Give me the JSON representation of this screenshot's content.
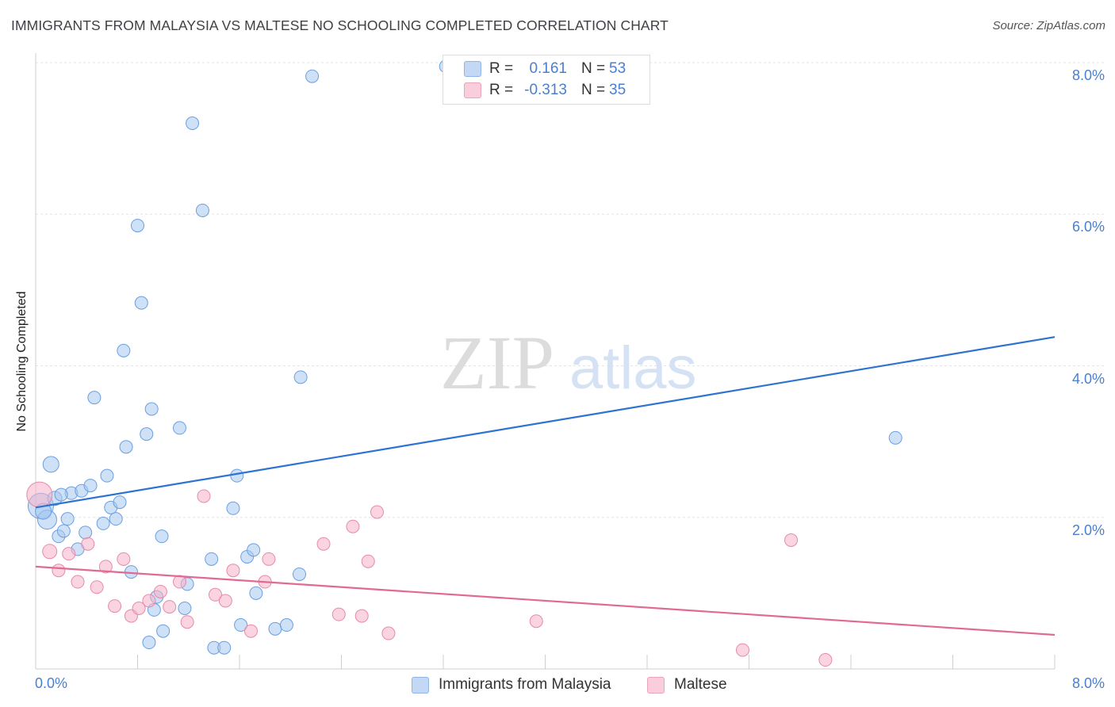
{
  "header": {
    "title": "IMMIGRANTS FROM MALAYSIA VS MALTESE NO SCHOOLING COMPLETED CORRELATION CHART",
    "source": "Source: ZipAtlas.com"
  },
  "watermark": {
    "zip": "ZIP",
    "atlas": "atlas"
  },
  "legend": {
    "rows": [
      {
        "r_label": "R =",
        "r_value": "0.161",
        "n_label": "N =",
        "n_value": "53",
        "color": "#a8c8f0"
      },
      {
        "r_label": "R =",
        "r_value": "-0.313",
        "n_label": "N =",
        "n_value": "35",
        "color": "#f5b3c8"
      }
    ]
  },
  "bottom_legend": [
    {
      "label": "Immigrants from Malaysia",
      "color": "#a8c8f0"
    },
    {
      "label": "Maltese",
      "color": "#f5b3c8"
    }
  ],
  "chart_data": {
    "type": "scatter",
    "ylabel": "No Schooling Completed",
    "xlim": [
      0,
      8
    ],
    "ylim": [
      0,
      8
    ],
    "x_ticks": [
      "0.0%",
      "8.0%"
    ],
    "y_ticks": [
      {
        "value": 2,
        "label": "2.0%"
      },
      {
        "value": 4,
        "label": "4.0%"
      },
      {
        "value": 6,
        "label": "6.0%"
      },
      {
        "value": 8,
        "label": "8.0%"
      }
    ],
    "grid": true,
    "series": [
      {
        "name": "Immigrants from Malaysia",
        "color": "#a8c8f0",
        "stroke": "#6a9fe0",
        "trend": {
          "x": [
            0,
            8
          ],
          "y": [
            2.13,
            4.38
          ],
          "color": "#2e72d2"
        },
        "points": [
          [
            0.04,
            2.15,
            16
          ],
          [
            0.09,
            1.97,
            12
          ],
          [
            0.12,
            2.7,
            10
          ],
          [
            0.15,
            2.25,
            9
          ],
          [
            0.18,
            1.75,
            8
          ],
          [
            0.22,
            1.82,
            8
          ],
          [
            0.25,
            1.98,
            8
          ],
          [
            0.28,
            2.32,
            8
          ],
          [
            0.33,
            1.58,
            8
          ],
          [
            0.36,
            2.35,
            8
          ],
          [
            0.39,
            1.8,
            8
          ],
          [
            0.43,
            2.42,
            8
          ],
          [
            0.46,
            3.58,
            8
          ],
          [
            0.53,
            1.92,
            8
          ],
          [
            0.56,
            2.55,
            8
          ],
          [
            0.59,
            2.13,
            8
          ],
          [
            0.63,
            1.98,
            8
          ],
          [
            0.66,
            2.2,
            8
          ],
          [
            0.69,
            4.2,
            8
          ],
          [
            0.71,
            2.93,
            8
          ],
          [
            0.75,
            1.28,
            8
          ],
          [
            0.8,
            5.85,
            8
          ],
          [
            0.83,
            4.83,
            8
          ],
          [
            0.87,
            3.1,
            8
          ],
          [
            0.89,
            0.35,
            8
          ],
          [
            0.91,
            3.43,
            8
          ],
          [
            0.93,
            0.78,
            8
          ],
          [
            0.95,
            0.95,
            8
          ],
          [
            0.99,
            1.75,
            8
          ],
          [
            1.0,
            0.5,
            8
          ],
          [
            1.13,
            3.18,
            8
          ],
          [
            1.17,
            0.8,
            8
          ],
          [
            1.19,
            1.12,
            8
          ],
          [
            1.23,
            7.2,
            8
          ],
          [
            1.31,
            6.05,
            8
          ],
          [
            1.38,
            1.45,
            8
          ],
          [
            1.4,
            0.28,
            8
          ],
          [
            1.48,
            0.28,
            8
          ],
          [
            1.55,
            2.12,
            8
          ],
          [
            1.58,
            2.55,
            8
          ],
          [
            1.61,
            0.58,
            8
          ],
          [
            1.66,
            1.48,
            8
          ],
          [
            1.71,
            1.57,
            8
          ],
          [
            1.73,
            1.0,
            8
          ],
          [
            1.88,
            0.53,
            8
          ],
          [
            1.97,
            0.58,
            8
          ],
          [
            2.07,
            1.25,
            8
          ],
          [
            2.08,
            3.85,
            8
          ],
          [
            2.17,
            7.82,
            8
          ],
          [
            3.22,
            7.95,
            8
          ],
          [
            6.75,
            3.05,
            8
          ],
          [
            0.06,
            2.08,
            10
          ],
          [
            0.2,
            2.3,
            8
          ]
        ]
      },
      {
        "name": "Maltese",
        "color": "#f5b3c8",
        "stroke": "#e889aa",
        "trend": {
          "x": [
            0,
            8
          ],
          "y": [
            1.35,
            0.45
          ],
          "color": "#e06a96"
        },
        "points": [
          [
            0.03,
            2.3,
            16
          ],
          [
            0.11,
            1.55,
            9
          ],
          [
            0.18,
            1.3,
            8
          ],
          [
            0.26,
            1.52,
            8
          ],
          [
            0.33,
            1.15,
            8
          ],
          [
            0.41,
            1.65,
            8
          ],
          [
            0.48,
            1.08,
            8
          ],
          [
            0.55,
            1.35,
            8
          ],
          [
            0.62,
            0.83,
            8
          ],
          [
            0.69,
            1.45,
            8
          ],
          [
            0.75,
            0.7,
            8
          ],
          [
            0.81,
            0.8,
            8
          ],
          [
            0.89,
            0.9,
            8
          ],
          [
            0.98,
            1.02,
            8
          ],
          [
            1.05,
            0.82,
            8
          ],
          [
            1.13,
            1.15,
            8
          ],
          [
            1.19,
            0.62,
            8
          ],
          [
            1.32,
            2.28,
            8
          ],
          [
            1.41,
            0.98,
            8
          ],
          [
            1.49,
            0.9,
            8
          ],
          [
            1.55,
            1.3,
            8
          ],
          [
            1.69,
            0.5,
            8
          ],
          [
            1.8,
            1.15,
            8
          ],
          [
            1.83,
            1.45,
            8
          ],
          [
            2.26,
            1.65,
            8
          ],
          [
            2.38,
            0.72,
            8
          ],
          [
            2.49,
            1.88,
            8
          ],
          [
            2.56,
            0.7,
            8
          ],
          [
            2.61,
            1.42,
            8
          ],
          [
            2.68,
            2.07,
            8
          ],
          [
            2.77,
            0.47,
            8
          ],
          [
            3.93,
            0.63,
            8
          ],
          [
            5.55,
            0.25,
            8
          ],
          [
            5.93,
            1.7,
            8
          ],
          [
            6.2,
            0.12,
            8
          ]
        ]
      }
    ]
  }
}
